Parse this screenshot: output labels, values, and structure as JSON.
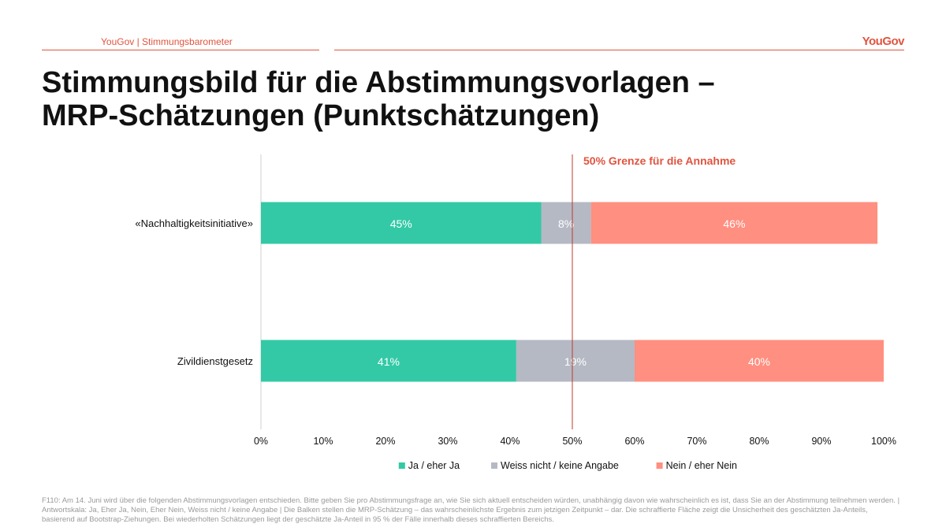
{
  "header": {
    "label": "YouGov | Stimmungsbarometer",
    "logo": "YouGov",
    "accent_color": "#e0543f"
  },
  "title_lines": [
    "Stimmungsbild für die Abstimmungsvorlagen –",
    "MRP-Schätzungen (Punktschätzungen)"
  ],
  "chart_data": {
    "type": "bar",
    "orientation": "horizontal",
    "stacked": true,
    "categories": [
      "«Nachhaltigkeitsinitiative»",
      "Zivildienstgesetz"
    ],
    "series": [
      {
        "name": "Ja / eher Ja",
        "values": [
          45,
          41
        ],
        "labels": [
          "45%",
          "41%"
        ],
        "color": "#33c9a6"
      },
      {
        "name": "Weiss nicht / keine Angabe",
        "values": [
          8,
          19
        ],
        "labels": [
          "8%",
          "19%"
        ],
        "color": "#b4b9c4"
      },
      {
        "name": "Nein / eher Nein",
        "values": [
          46,
          40
        ],
        "labels": [
          "46%",
          "40%"
        ],
        "color": "#ff8f80"
      }
    ],
    "x_ticks": [
      "0%",
      "10%",
      "20%",
      "30%",
      "40%",
      "50%",
      "60%",
      "70%",
      "80%",
      "90%",
      "100%"
    ],
    "xlim": [
      0,
      100
    ],
    "reference_line": {
      "value": 50,
      "label": "50% Grenze für die Annahme",
      "color": "#c0392b"
    },
    "legend_position": "bottom",
    "grid": false
  },
  "footnote": "F110: Am 14. Juni wird über die folgenden Abstimmungsvorlagen entschieden. Bitte geben Sie pro Abstimmungsfrage an, wie Sie sich aktuell entscheiden würden, unabhängig davon wie wahrscheinlich es ist, dass Sie an der Abstimmung teilnehmen werden. | Antwortskala: Ja, Eher Ja, Nein, Eher Nein, Weiss nicht / keine Angabe | Die Balken stellen die MRP-Schätzung – das wahrscheinlichste Ergebnis zum jetzigen Zeitpunkt – dar. Die schraffierte Fläche zeigt die Unsicherheit des geschätzten Ja-Anteils, basierend auf Bootstrap-Ziehungen. Bei wiederholten Schätzungen liegt der geschätzte Ja-Anteil in 95 % der Fälle innerhalb dieses schraffierten Bereichs."
}
